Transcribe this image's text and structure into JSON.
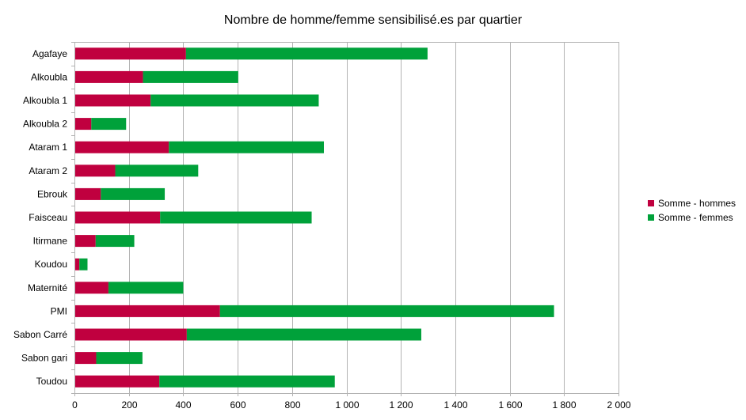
{
  "chart_data": {
    "type": "bar",
    "orientation": "horizontal",
    "stacked": true,
    "title": "Nombre de homme/femme sensibilisé.es par quartier",
    "categories": [
      "Agafaye",
      "Alkoubla",
      "Alkoubla 1",
      "Alkoubla 2",
      "Ataram 1",
      "Ataram 2",
      "Ebrouk",
      "Faisceau",
      "Itirmane",
      "Koudou",
      "Maternité",
      "PMI",
      "Sabon Carré",
      "Sabon gari",
      "Toudou"
    ],
    "series": [
      {
        "name": "Somme - hommes",
        "color": "#c0003f",
        "values": [
          410,
          252,
          280,
          62,
          347,
          150,
          97,
          315,
          78,
          18,
          125,
          535,
          413,
          80,
          312
        ]
      },
      {
        "name": "Somme - femmes",
        "color": "#00a13a",
        "values": [
          888,
          350,
          618,
          128,
          570,
          305,
          235,
          557,
          142,
          30,
          275,
          1228,
          862,
          170,
          645
        ]
      }
    ],
    "xlim": [
      0,
      2000
    ],
    "xticks": [
      "0",
      "200",
      "400",
      "600",
      "800",
      "1 000",
      "1 200",
      "1 400",
      "1 600",
      "1 800",
      "2 000"
    ],
    "grid": "vertical",
    "legend": "right"
  }
}
